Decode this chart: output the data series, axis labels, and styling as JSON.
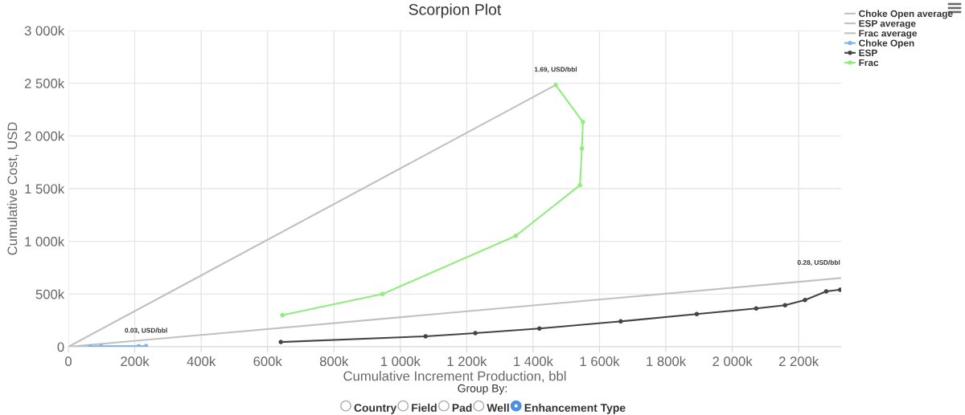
{
  "chart_data": {
    "type": "line",
    "title": "Scorpion Plot",
    "xlabel": "Cumulative Increment Production, bbl",
    "ylabel": "Cumulative Cost, USD",
    "xlim": [
      0,
      2328000
    ],
    "ylim": [
      0,
      3000000
    ],
    "xticks": [
      0,
      {
        "value": 200000,
        "label": "200k"
      },
      {
        "value": 400000,
        "label": "400k"
      },
      {
        "value": 600000,
        "label": "600k"
      },
      {
        "value": 800000,
        "label": "800k"
      },
      {
        "value": 1000000,
        "label": "1 000k"
      },
      {
        "value": 1200000,
        "label": "1 200k"
      },
      {
        "value": 1400000,
        "label": "1 400k"
      },
      {
        "value": 1600000,
        "label": "1 600k"
      },
      {
        "value": 1800000,
        "label": "1 800k"
      },
      {
        "value": 2000000,
        "label": "2 000k"
      },
      {
        "value": 2200000,
        "label": "2 200k"
      }
    ],
    "yticks": [
      0,
      {
        "value": 500000,
        "label": "500k"
      },
      {
        "value": 1000000,
        "label": "1 000k"
      },
      {
        "value": 1500000,
        "label": "1 500k"
      },
      {
        "value": 2000000,
        "label": "2 000k"
      },
      {
        "value": 2500000,
        "label": "2 500k"
      },
      {
        "value": 3000000,
        "label": "3 000k"
      }
    ],
    "grid": true,
    "legend": "top right",
    "series": [
      {
        "name": "Choke Open average",
        "color": "#c0c0c0",
        "marker": "none",
        "x": [
          0,
          234000
        ],
        "values": [
          0,
          7000
        ]
      },
      {
        "name": "ESP average",
        "color": "#c0c0c0",
        "marker": "none",
        "x": [
          0,
          2325000
        ],
        "values": [
          0,
          651000
        ]
      },
      {
        "name": "Frac average",
        "color": "#c0c0c0",
        "marker": "none",
        "x": [
          0,
          1468000
        ],
        "values": [
          0,
          2483000
        ]
      },
      {
        "name": "Choke Open",
        "color": "#7cb5ec",
        "marker": "circle",
        "x": [
          66000,
          99000,
          212000,
          234000
        ],
        "values": [
          4000,
          5000,
          6000,
          7000
        ]
      },
      {
        "name": "ESP",
        "color": "#434348",
        "marker": "circle",
        "x": [
          640000,
          1076000,
          1226000,
          1419000,
          1664000,
          1893000,
          2072000,
          2159000,
          2219000,
          2283000,
          2325000
        ],
        "values": [
          45000,
          99000,
          130000,
          173000,
          241000,
          310000,
          363000,
          394000,
          444000,
          526000,
          541000
        ]
      },
      {
        "name": "Frac",
        "color": "#90ed7d",
        "marker": "circle",
        "x": [
          645000,
          946000,
          1348000,
          1541000,
          1547000,
          1550000,
          1468000
        ],
        "values": [
          301000,
          500000,
          1053000,
          1533000,
          1881000,
          2133000,
          2483000
        ]
      }
    ],
    "annotations": [
      {
        "text": "0.03, USD/bbl",
        "x": 234000,
        "y": 7000
      },
      {
        "text": "0.28, USD/bbl",
        "x": 2325000,
        "y": 651000
      },
      {
        "text": "1.69, USD/bbl",
        "x": 1468000,
        "y": 2483000
      },
      "Group By:",
      "Country",
      "Field",
      "Pad",
      "Well",
      "Enhancement Type"
    ]
  }
}
